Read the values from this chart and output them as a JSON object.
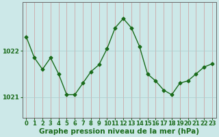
{
  "hours": [
    0,
    1,
    2,
    3,
    4,
    5,
    6,
    7,
    8,
    9,
    10,
    11,
    12,
    13,
    14,
    15,
    16,
    17,
    18,
    19,
    20,
    21,
    22,
    23
  ],
  "pressure": [
    1022.3,
    1021.85,
    1021.6,
    1021.85,
    1021.5,
    1021.05,
    1021.05,
    1021.3,
    1021.55,
    1021.7,
    1022.05,
    1022.5,
    1022.7,
    1022.5,
    1022.1,
    1021.5,
    1021.35,
    1021.15,
    1021.05,
    1021.3,
    1021.35,
    1021.5,
    1021.65,
    1021.72
  ],
  "line_color": "#1a6b1a",
  "marker": "D",
  "marker_size": 2.5,
  "background_color": "#cce8e8",
  "grid_color_v": "#cc9999",
  "grid_color_h": "#aacccc",
  "ylabel_ticks": [
    1021,
    1022
  ],
  "ylim": [
    1020.55,
    1023.05
  ],
  "xlim": [
    -0.5,
    23.5
  ],
  "xlabel": "Graphe pression niveau de la mer (hPa)",
  "xlabel_fontsize": 7.5,
  "tick_fontsize": 6.5,
  "tick_color": "#1a6b1a",
  "spine_color": "#666666",
  "linewidth": 1.0
}
